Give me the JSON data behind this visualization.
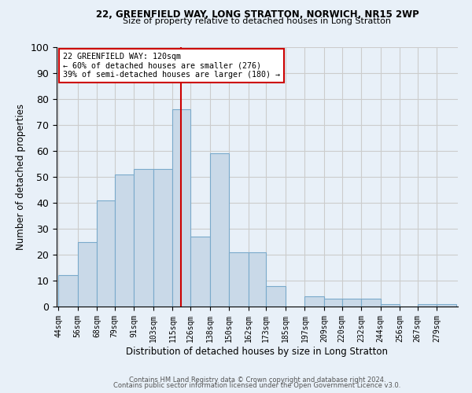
{
  "title1": "22, GREENFIELD WAY, LONG STRATTON, NORWICH, NR15 2WP",
  "title2": "Size of property relative to detached houses in Long Stratton",
  "xlabel": "Distribution of detached houses by size in Long Stratton",
  "ylabel": "Number of detached properties",
  "footer1": "Contains HM Land Registry data © Crown copyright and database right 2024.",
  "footer2": "Contains public sector information licensed under the Open Government Licence v3.0.",
  "annotation_line1": "22 GREENFIELD WAY: 120sqm",
  "annotation_line2": "← 60% of detached houses are smaller (276)",
  "annotation_line3": "39% of semi-detached houses are larger (180) →",
  "bar_left_edges": [
    44,
    56,
    68,
    79,
    91,
    103,
    115,
    126,
    138,
    150,
    162,
    173,
    185,
    197,
    209,
    220,
    232,
    244,
    256,
    267,
    279
  ],
  "bar_heights": [
    12,
    25,
    41,
    51,
    53,
    53,
    76,
    27,
    59,
    21,
    21,
    8,
    0,
    4,
    3,
    3,
    3,
    1,
    0,
    1,
    1
  ],
  "bar_widths": [
    12,
    12,
    11,
    12,
    12,
    12,
    11,
    12,
    12,
    12,
    11,
    12,
    12,
    12,
    11,
    12,
    12,
    12,
    11,
    12,
    12
  ],
  "tick_labels": [
    "44sqm",
    "56sqm",
    "68sqm",
    "79sqm",
    "91sqm",
    "103sqm",
    "115sqm",
    "126sqm",
    "138sqm",
    "150sqm",
    "162sqm",
    "173sqm",
    "185sqm",
    "197sqm",
    "209sqm",
    "220sqm",
    "232sqm",
    "244sqm",
    "256sqm",
    "267sqm",
    "279sqm"
  ],
  "property_line_x": 120,
  "bar_facecolor": "#c9d9e8",
  "bar_edgecolor": "#7aaacb",
  "property_line_color": "#cc0000",
  "annotation_box_edgecolor": "#cc0000",
  "annotation_box_facecolor": "#ffffff",
  "grid_color": "#cccccc",
  "background_color": "#e8f0f8",
  "ylim": [
    0,
    100
  ],
  "yticks": [
    0,
    10,
    20,
    30,
    40,
    50,
    60,
    70,
    80,
    90,
    100
  ]
}
